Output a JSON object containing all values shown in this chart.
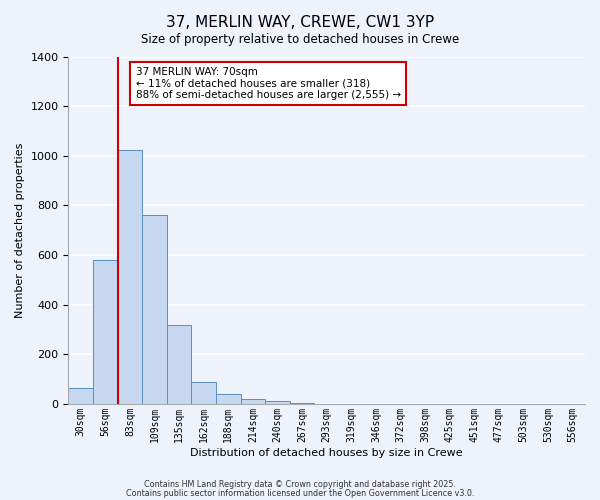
{
  "title": "37, MERLIN WAY, CREWE, CW1 3YP",
  "subtitle": "Size of property relative to detached houses in Crewe",
  "xlabel": "Distribution of detached houses by size in Crewe",
  "ylabel": "Number of detached properties",
  "bin_labels": [
    "30sqm",
    "56sqm",
    "83sqm",
    "109sqm",
    "135sqm",
    "162sqm",
    "188sqm",
    "214sqm",
    "240sqm",
    "267sqm",
    "293sqm",
    "319sqm",
    "346sqm",
    "372sqm",
    "398sqm",
    "425sqm",
    "451sqm",
    "477sqm",
    "503sqm",
    "530sqm",
    "556sqm"
  ],
  "bar_values": [
    65,
    580,
    1025,
    760,
    320,
    90,
    38,
    20,
    10,
    5,
    0,
    0,
    0,
    0,
    0,
    0,
    0,
    0,
    0,
    0,
    0
  ],
  "bar_color": "#c5d8f0",
  "bar_edge_color": "#5a8fc2",
  "property_line_x": 1.5,
  "property_line_color": "#cc0000",
  "ylim": [
    0,
    1400
  ],
  "yticks": [
    0,
    200,
    400,
    600,
    800,
    1000,
    1200,
    1400
  ],
  "annotation_title": "37 MERLIN WAY: 70sqm",
  "annotation_line1": "← 11% of detached houses are smaller (318)",
  "annotation_line2": "88% of semi-detached houses are larger (2,555) →",
  "annotation_box_color": "#ffffff",
  "annotation_box_edge": "#cc0000",
  "footer1": "Contains HM Land Registry data © Crown copyright and database right 2025.",
  "footer2": "Contains public sector information licensed under the Open Government Licence v3.0.",
  "background_color": "#eef2fb",
  "grid_color": "#ffffff"
}
